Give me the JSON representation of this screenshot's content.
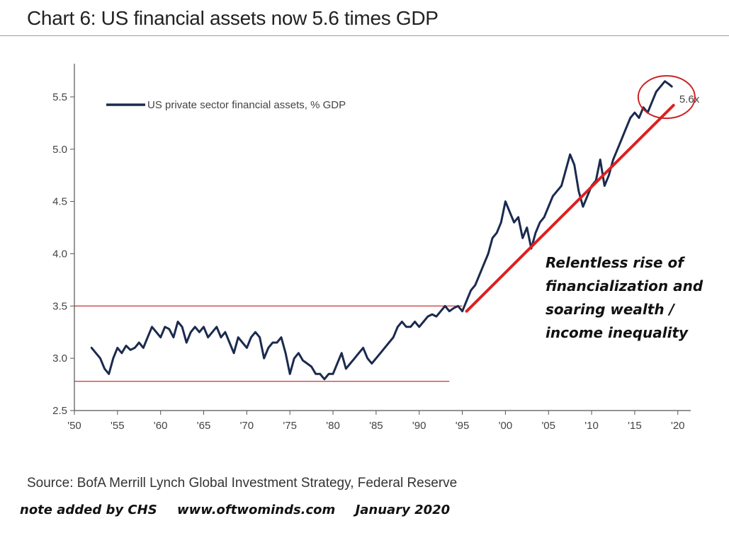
{
  "header": {
    "title": "Chart 6: US financial assets now 5.6 times GDP"
  },
  "chart_data": {
    "type": "line",
    "title": "Chart 6: US financial assets now 5.6 times GDP",
    "xlabel": "",
    "ylabel": "",
    "xlim": [
      1950,
      2021.5
    ],
    "ylim": [
      2.5,
      5.75
    ],
    "x_ticks": [
      1950,
      1955,
      1960,
      1965,
      1970,
      1975,
      1980,
      1985,
      1990,
      1995,
      2000,
      2005,
      2010,
      2015,
      2020
    ],
    "x_tick_labels": [
      "'50",
      "'55",
      "'60",
      "'65",
      "'70",
      "'75",
      "'80",
      "'85",
      "'90",
      "'95",
      "'00",
      "'05",
      "'10",
      "'15",
      "'20"
    ],
    "y_ticks": [
      2.5,
      3.0,
      3.5,
      4.0,
      4.5,
      5.0,
      5.5
    ],
    "y_tick_labels": [
      "2.5",
      "3.0",
      "3.5",
      "4.0",
      "4.5",
      "5.0",
      "5.5"
    ],
    "legend": {
      "label": "US private sector financial assets, % GDP",
      "position": "top-left"
    },
    "series": [
      {
        "name": "US private sector financial assets, % GDP",
        "color": "#1b2a4e",
        "x": [
          1952.0,
          1952.5,
          1953.0,
          1953.5,
          1954.0,
          1954.5,
          1955.0,
          1955.5,
          1956.0,
          1956.5,
          1957.0,
          1957.5,
          1958.0,
          1958.5,
          1959.0,
          1959.5,
          1960.0,
          1960.5,
          1961.0,
          1961.5,
          1962.0,
          1962.5,
          1963.0,
          1963.5,
          1964.0,
          1964.5,
          1965.0,
          1965.5,
          1966.0,
          1966.5,
          1967.0,
          1967.5,
          1968.0,
          1968.5,
          1969.0,
          1969.5,
          1970.0,
          1970.5,
          1971.0,
          1971.5,
          1972.0,
          1972.5,
          1973.0,
          1973.5,
          1974.0,
          1974.5,
          1975.0,
          1975.5,
          1976.0,
          1976.5,
          1977.0,
          1977.5,
          1978.0,
          1978.5,
          1979.0,
          1979.5,
          1980.0,
          1980.5,
          1981.0,
          1981.5,
          1982.0,
          1982.5,
          1983.0,
          1983.5,
          1984.0,
          1984.5,
          1985.0,
          1985.5,
          1986.0,
          1986.5,
          1987.0,
          1987.5,
          1988.0,
          1988.5,
          1989.0,
          1989.5,
          1990.0,
          1990.5,
          1991.0,
          1991.5,
          1992.0,
          1992.5,
          1993.0,
          1993.5,
          1994.0,
          1994.5,
          1995.0,
          1995.5,
          1996.0,
          1996.5,
          1997.0,
          1997.5,
          1998.0,
          1998.5,
          1999.0,
          1999.5,
          2000.0,
          2000.5,
          2001.0,
          2001.5,
          2002.0,
          2002.5,
          2003.0,
          2003.5,
          2004.0,
          2004.5,
          2005.0,
          2005.5,
          2006.0,
          2006.5,
          2007.0,
          2007.5,
          2008.0,
          2008.5,
          2009.0,
          2009.5,
          2010.0,
          2010.5,
          2011.0,
          2011.5,
          2012.0,
          2012.5,
          2013.0,
          2013.5,
          2014.0,
          2014.5,
          2015.0,
          2015.5,
          2016.0,
          2016.5,
          2017.0,
          2017.5,
          2018.0,
          2018.5,
          2019.0,
          2019.3
        ],
        "values": [
          3.1,
          3.05,
          3.0,
          2.9,
          2.85,
          3.0,
          3.1,
          3.05,
          3.12,
          3.08,
          3.1,
          3.15,
          3.1,
          3.2,
          3.3,
          3.25,
          3.2,
          3.3,
          3.28,
          3.2,
          3.35,
          3.3,
          3.15,
          3.25,
          3.3,
          3.25,
          3.3,
          3.2,
          3.25,
          3.3,
          3.2,
          3.25,
          3.15,
          3.05,
          3.2,
          3.15,
          3.1,
          3.2,
          3.25,
          3.2,
          3.0,
          3.1,
          3.15,
          3.15,
          3.2,
          3.05,
          2.85,
          3.0,
          3.05,
          2.98,
          2.95,
          2.92,
          2.85,
          2.85,
          2.8,
          2.85,
          2.85,
          2.95,
          3.05,
          2.9,
          2.95,
          3.0,
          3.05,
          3.1,
          3.0,
          2.95,
          3.0,
          3.05,
          3.1,
          3.15,
          3.2,
          3.3,
          3.35,
          3.3,
          3.3,
          3.35,
          3.3,
          3.35,
          3.4,
          3.42,
          3.4,
          3.45,
          3.5,
          3.45,
          3.48,
          3.5,
          3.45,
          3.55,
          3.65,
          3.7,
          3.8,
          3.9,
          4.0,
          4.15,
          4.2,
          4.3,
          4.5,
          4.4,
          4.3,
          4.35,
          4.15,
          4.25,
          4.05,
          4.2,
          4.3,
          4.35,
          4.45,
          4.55,
          4.6,
          4.65,
          4.8,
          4.95,
          4.85,
          4.6,
          4.45,
          4.55,
          4.65,
          4.7,
          4.9,
          4.65,
          4.75,
          4.9,
          5.0,
          5.1,
          5.2,
          5.3,
          5.35,
          5.3,
          5.4,
          5.35,
          5.45,
          5.55,
          5.6,
          5.65,
          5.62,
          5.6
        ]
      }
    ],
    "reference_lines": [
      {
        "y": 3.5,
        "x_start": 1950,
        "x_end": 1995.0,
        "color": "#d04545"
      },
      {
        "y": 2.78,
        "x_start": 1950,
        "x_end": 1993.5,
        "color": "#d04545"
      }
    ],
    "trend_line": {
      "x_start": 1995.5,
      "y_start": 3.45,
      "x_end": 2019.5,
      "y_end": 5.42,
      "color": "#dd2020"
    },
    "highlight_circle": {
      "x": 2018.2,
      "y": 5.58,
      "color": "#cc2222"
    },
    "annotations": {
      "end_label": "5.6x",
      "callout_lines": [
        "Relentless rise of",
        "financialization and",
        "soaring wealth /",
        "income inequality"
      ]
    }
  },
  "footer": {
    "source": "Source: BofA Merrill Lynch Global Investment Strategy, Federal Reserve",
    "note_parts": [
      "note added by CHS",
      "www.oftwominds.com",
      "January 2020"
    ]
  }
}
